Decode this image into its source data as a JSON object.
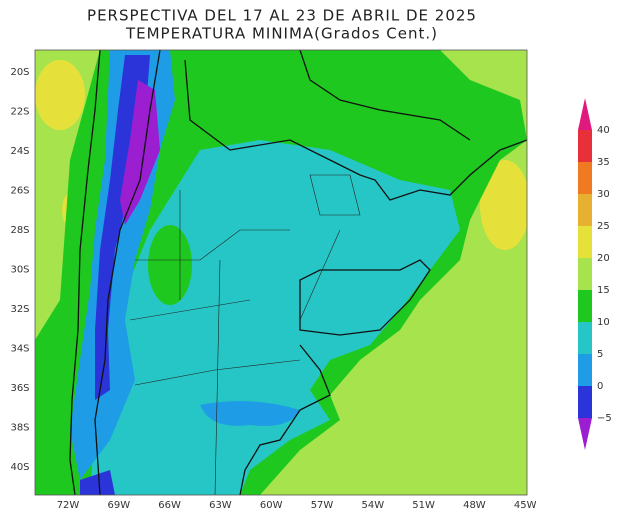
{
  "title": "PERSPECTIVA DEL 17 AL 23 DE ABRIL DE 2025",
  "subtitle": "TEMPERATURA MINIMA(Grados Cent.)",
  "lat_labels": [
    "20S",
    "22S",
    "24S",
    "26S",
    "28S",
    "30S",
    "32S",
    "34S",
    "36S",
    "38S",
    "40S"
  ],
  "lon_labels": [
    "72W",
    "69W",
    "66W",
    "63W",
    "60W",
    "57W",
    "54W",
    "51W",
    "48W",
    "45W"
  ],
  "colorbar": {
    "labels": [
      "40",
      "35",
      "30",
      "25",
      "20",
      "15",
      "10",
      "5",
      "0",
      "−5"
    ],
    "colors": [
      "#e0197f",
      "#e8303a",
      "#f07a22",
      "#e8b030",
      "#e6e13a",
      "#a6e34c",
      "#1ec81e",
      "#27c6c6",
      "#1e9de6",
      "#2a34d8",
      "#9b1fd0"
    ]
  }
}
